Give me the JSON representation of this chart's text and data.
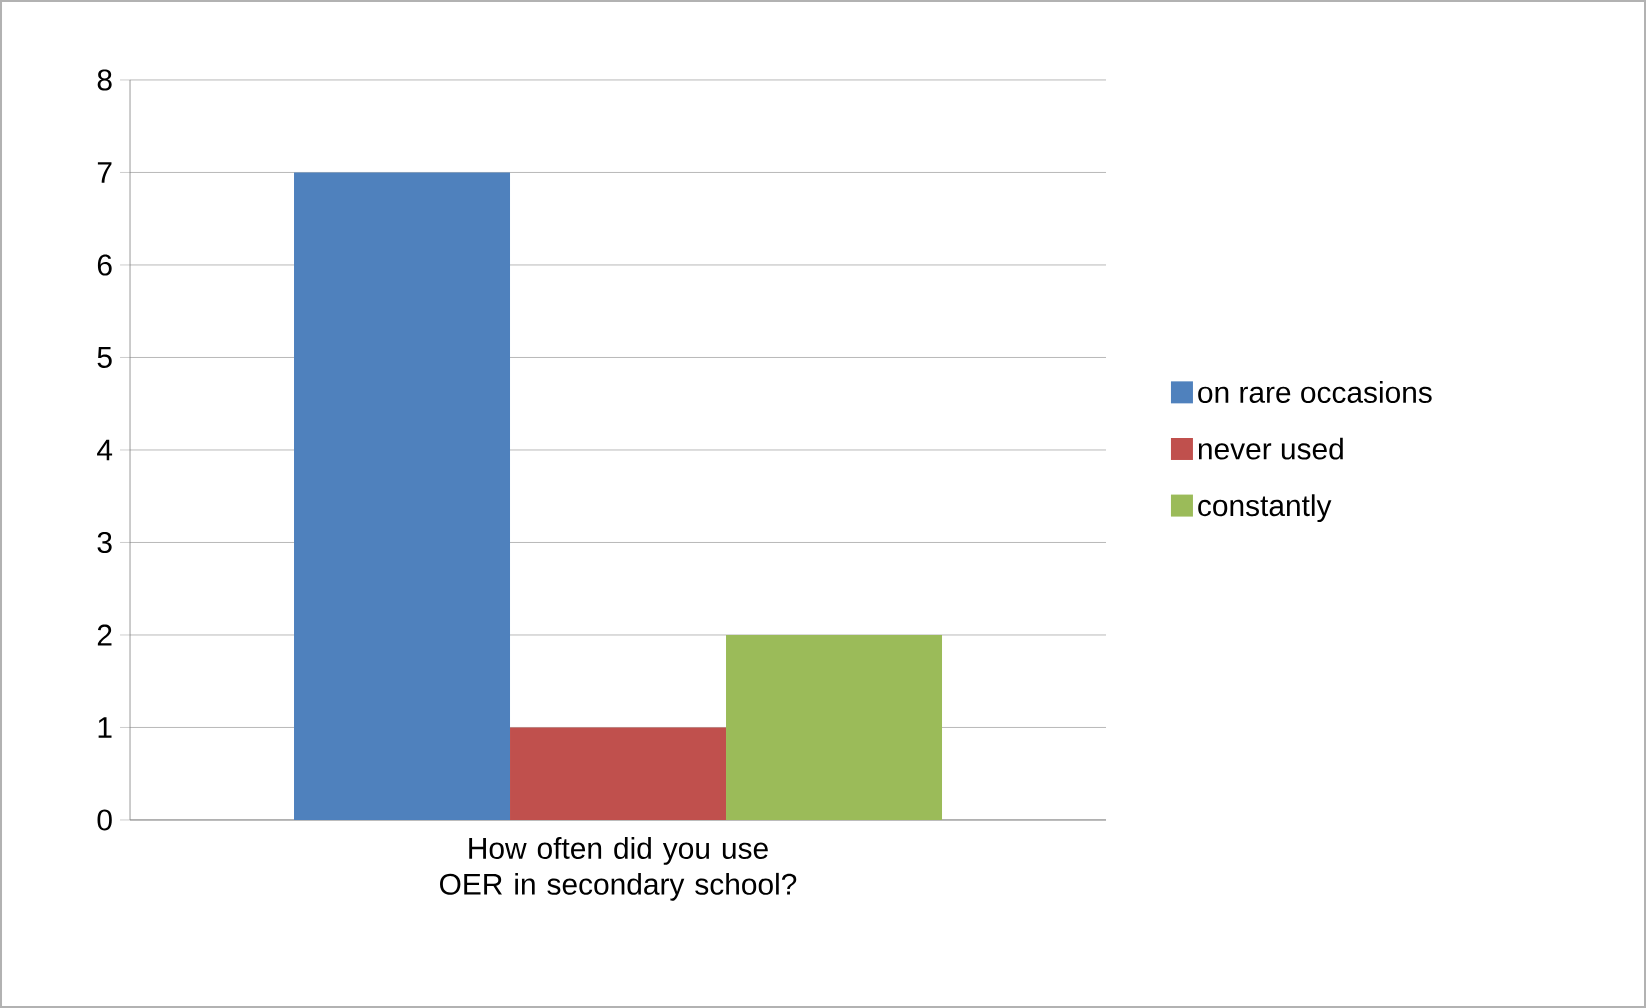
{
  "chart_data": {
    "type": "bar",
    "categories": [
      "How often did you use OER in secondary school?"
    ],
    "series": [
      {
        "name": "on rare occasions",
        "color": "#4f81bd",
        "values": [
          7
        ]
      },
      {
        "name": "never used",
        "color": "#c0504d",
        "values": [
          1
        ]
      },
      {
        "name": "constantly",
        "color": "#9bbb59",
        "values": [
          2
        ]
      }
    ],
    "ylim": [
      0,
      8
    ],
    "yticks": [
      0,
      1,
      2,
      3,
      4,
      5,
      6,
      7,
      8
    ],
    "grid": "y",
    "legend": "right"
  }
}
